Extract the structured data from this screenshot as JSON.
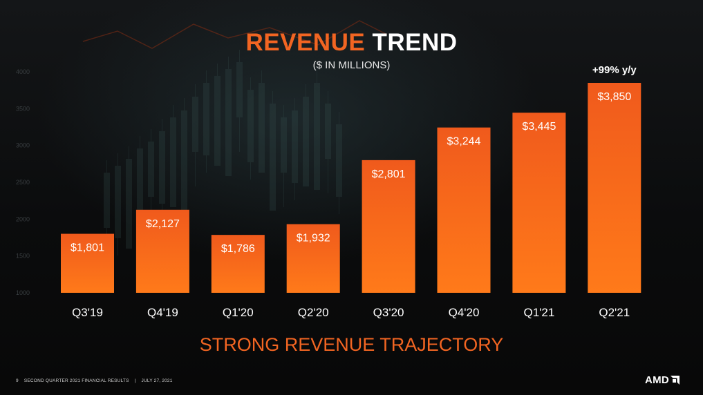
{
  "title": {
    "accent": "REVENUE",
    "rest": "TREND"
  },
  "subtitle": "($ IN MILLIONS)",
  "tagline": "STRONG REVENUE TRAJECTORY",
  "footer": {
    "page_number": "9",
    "report_title": "SECOND QUARTER 2021 FINANCIAL RESULTS",
    "separator": "|",
    "date": "JULY 27, 2021"
  },
  "logo_text": "AMD",
  "colors": {
    "accent": "#f26522",
    "bar_top": "#f05a1c",
    "bar_bottom": "#ff7a1a",
    "background": "#0b0b0c"
  },
  "chart_data": {
    "type": "bar",
    "categories": [
      "Q3'19",
      "Q4'19",
      "Q1'20",
      "Q2'20",
      "Q3'20",
      "Q4'20",
      "Q1'21",
      "Q2'21"
    ],
    "values": [
      1801,
      2127,
      1786,
      1932,
      2801,
      3244,
      3445,
      3850
    ],
    "data_labels": [
      "$1,801",
      "$2,127",
      "$1,786",
      "$1,932",
      "$2,801",
      "$3,244",
      "$3,445",
      "$3,850"
    ],
    "y_ticks": [
      "1000",
      "1500",
      "2000",
      "2500",
      "3000",
      "3500",
      "4000"
    ],
    "ylim": [
      1000,
      4000
    ],
    "annotation": {
      "category": "Q2'21",
      "text": "+99% y/y"
    },
    "grid": false,
    "legend": "none"
  }
}
